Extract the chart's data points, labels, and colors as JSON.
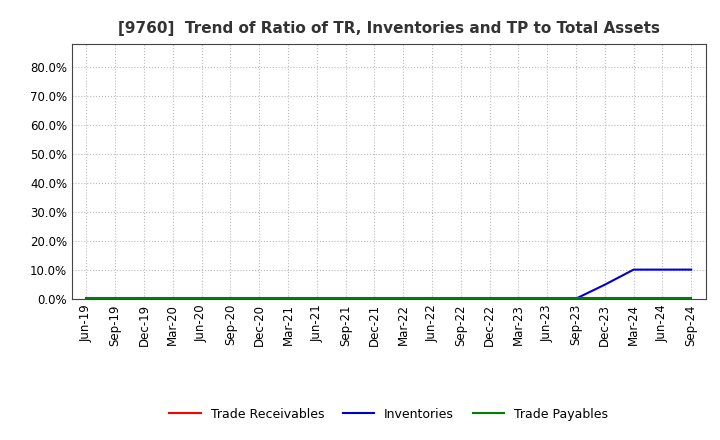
{
  "title": "[9760]  Trend of Ratio of TR, Inventories and TP to Total Assets",
  "x_labels": [
    "Jun-19",
    "Sep-19",
    "Dec-19",
    "Mar-20",
    "Jun-20",
    "Sep-20",
    "Dec-20",
    "Mar-21",
    "Jun-21",
    "Sep-21",
    "Dec-21",
    "Mar-22",
    "Jun-22",
    "Sep-22",
    "Dec-22",
    "Mar-23",
    "Jun-23",
    "Sep-23",
    "Dec-23",
    "Mar-24",
    "Jun-24",
    "Sep-24"
  ],
  "trade_receivables": [
    0.002,
    0.002,
    0.002,
    0.002,
    0.002,
    0.002,
    0.002,
    0.002,
    0.002,
    0.002,
    0.002,
    0.002,
    0.002,
    0.002,
    0.002,
    0.002,
    0.002,
    0.002,
    0.002,
    0.002,
    0.002,
    0.002
  ],
  "inventories": [
    0.001,
    0.001,
    0.001,
    0.001,
    0.001,
    0.001,
    0.001,
    0.001,
    0.001,
    0.001,
    0.001,
    0.001,
    0.001,
    0.001,
    0.001,
    0.002,
    0.002,
    0.002,
    0.05,
    0.102,
    0.102,
    0.102
  ],
  "trade_payables": [
    0.003,
    0.003,
    0.003,
    0.003,
    0.003,
    0.003,
    0.003,
    0.003,
    0.003,
    0.003,
    0.003,
    0.003,
    0.003,
    0.003,
    0.003,
    0.003,
    0.003,
    0.003,
    0.003,
    0.003,
    0.003,
    0.003
  ],
  "tr_color": "#ff0000",
  "inv_color": "#0000cd",
  "tp_color": "#008000",
  "ylim": [
    0.0,
    0.88
  ],
  "yticks": [
    0.0,
    0.1,
    0.2,
    0.3,
    0.4,
    0.5,
    0.6,
    0.7,
    0.8
  ],
  "background_color": "#ffffff",
  "plot_bg_color": "#ffffff",
  "grid_color": "#bbbbbb",
  "title_fontsize": 11,
  "tick_fontsize": 8.5,
  "legend_labels": [
    "Trade Receivables",
    "Inventories",
    "Trade Payables"
  ]
}
